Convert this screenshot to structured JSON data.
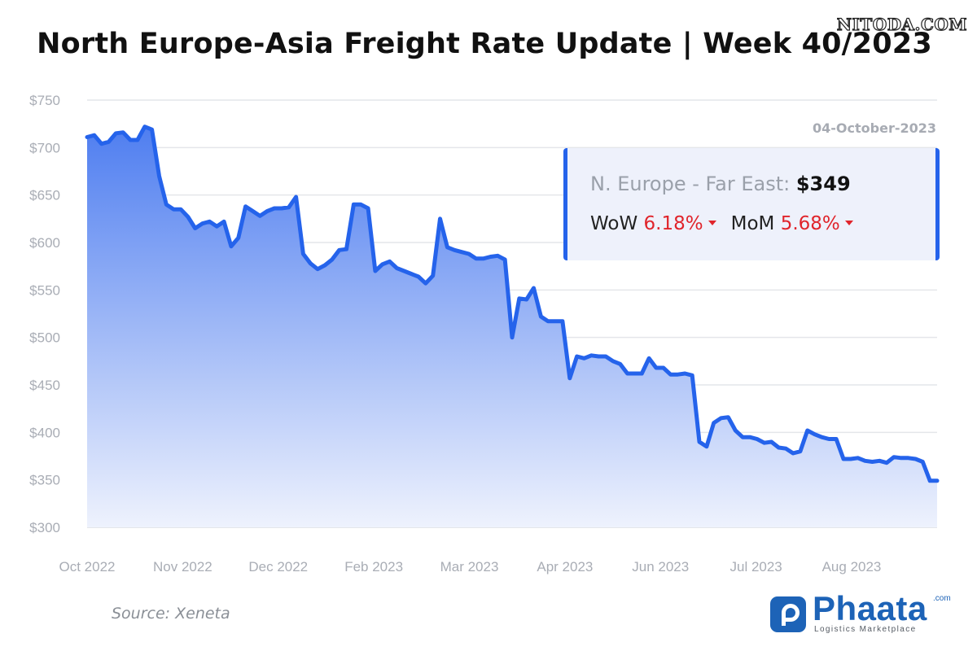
{
  "header": {
    "title": "North Europe-Asia Freight Rate Update | Week 40/2023",
    "watermark": "NITODA.COM"
  },
  "info_box": {
    "route_label": "N. Europe - Far East:",
    "route_value": "$349",
    "wow_label": "WoW",
    "wow_value": "6.18%",
    "mom_label": "MoM",
    "mom_value": "5.68%"
  },
  "footer": {
    "source": "Source: Xeneta",
    "logo_name": "Phaata",
    "logo_com": ".com",
    "logo_tagline": "Logistics Marketplace"
  },
  "colors": {
    "line": "#2563eb",
    "fill_top": "#4f7ef0",
    "fill_bottom": "#eef2fd",
    "grid": "#e4e6ea",
    "down": "#e0242b"
  },
  "chart_data": {
    "type": "area",
    "title": "North Europe-Asia Freight Rate Update | Week 40/2023",
    "xlabel": "",
    "ylabel": "",
    "ylim": [
      300,
      750
    ],
    "y_ticks": [
      300,
      350,
      400,
      450,
      500,
      550,
      600,
      650,
      700,
      750
    ],
    "y_tick_labels": [
      "$300",
      "$350",
      "$400",
      "$450",
      "$500",
      "$550",
      "$600",
      "$650",
      "$700",
      "$750"
    ],
    "x_tick_labels": [
      "Oct 2022",
      "Nov 2022",
      "Dec 2022",
      "Feb 2023",
      "Mar 2023",
      "Apr 2023",
      "Jun 2023",
      "Jul 2023",
      "Aug 2023"
    ],
    "date_annotation": "04-October-2023",
    "grid": true,
    "series": [
      {
        "values": [
          711,
          713,
          704,
          706,
          715,
          716,
          708,
          708,
          722,
          719,
          670,
          640,
          635,
          635,
          627,
          615,
          620,
          622,
          617,
          622,
          596,
          605,
          638,
          633,
          628,
          633,
          636,
          636,
          637,
          648,
          588,
          578,
          572,
          576,
          582,
          592,
          593,
          640,
          640,
          636,
          570,
          577,
          580,
          573,
          570,
          567,
          564,
          557,
          565,
          625,
          595,
          592,
          590,
          588,
          583,
          583,
          585,
          586,
          582,
          500,
          541,
          540,
          552,
          522,
          517,
          517,
          517,
          457,
          480,
          478,
          481,
          480,
          480,
          475,
          472,
          462,
          462,
          462,
          478,
          468,
          468,
          461,
          461,
          462,
          460,
          390,
          385,
          410,
          415,
          416,
          402,
          395,
          395,
          393,
          389,
          390,
          384,
          383,
          378,
          380,
          402,
          398,
          395,
          393,
          393,
          372,
          372,
          373,
          370,
          369,
          370,
          368,
          374,
          373,
          373,
          372,
          369,
          349,
          349
        ]
      }
    ]
  }
}
